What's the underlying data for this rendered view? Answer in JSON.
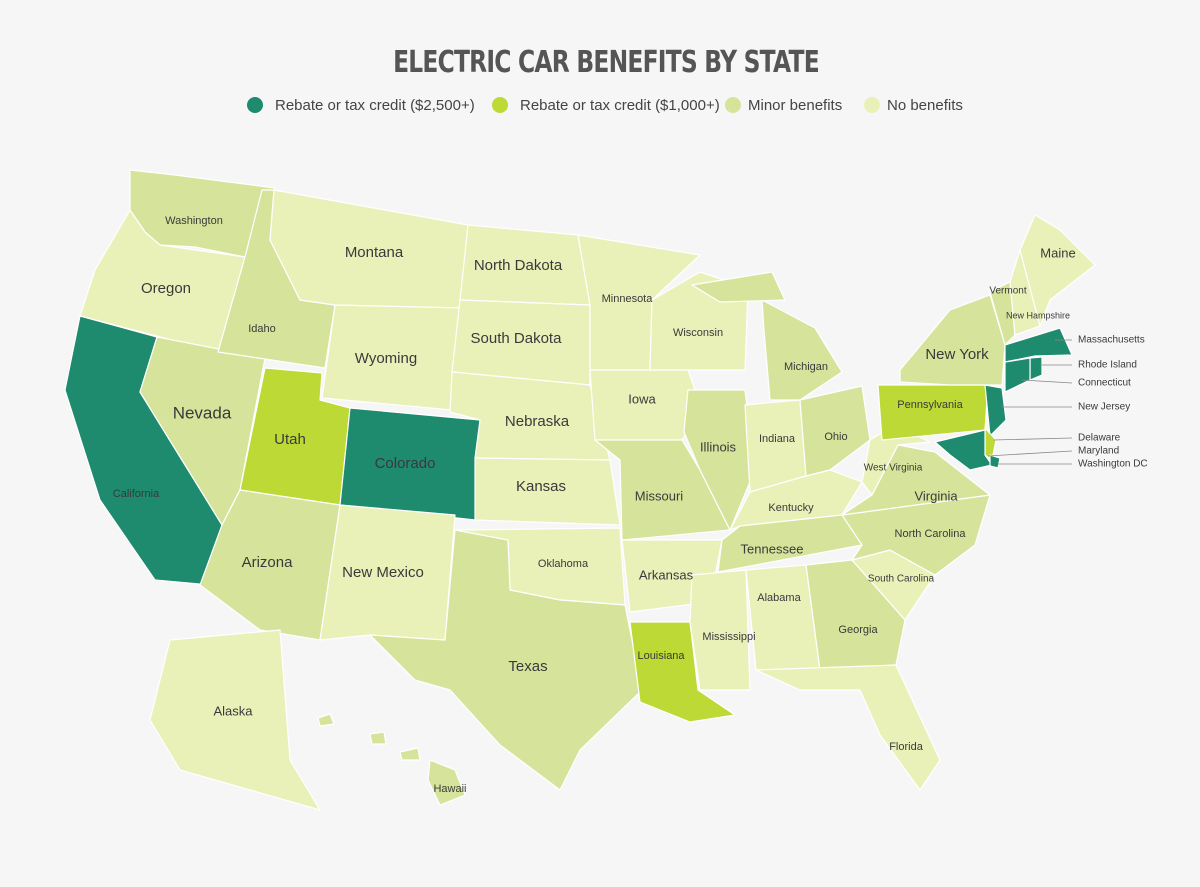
{
  "title": "ELECTRIC CAR BENEFITS BY STATE",
  "legend": [
    {
      "label": "Rebate or tax credit ($2,500+)",
      "color": "#1e8a6e"
    },
    {
      "label": "Rebate or tax credit ($1,000+)",
      "color": "#bcd935"
    },
    {
      "label": "Minor benefits",
      "color": "#d6e39b"
    },
    {
      "label": "No benefits",
      "color": "#e9f1b9"
    }
  ],
  "states": [
    {
      "name": "Washington",
      "benefit": "Minor benefits"
    },
    {
      "name": "Oregon",
      "benefit": "No benefits"
    },
    {
      "name": "California",
      "benefit": "Rebate or tax credit ($2,500+)"
    },
    {
      "name": "Nevada",
      "benefit": "Minor benefits"
    },
    {
      "name": "Idaho",
      "benefit": "Minor benefits"
    },
    {
      "name": "Montana",
      "benefit": "No benefits"
    },
    {
      "name": "Wyoming",
      "benefit": "No benefits"
    },
    {
      "name": "Utah",
      "benefit": "Rebate or tax credit ($1,000+)"
    },
    {
      "name": "Colorado",
      "benefit": "Rebate or tax credit ($2,500+)"
    },
    {
      "name": "Arizona",
      "benefit": "Minor benefits"
    },
    {
      "name": "New Mexico",
      "benefit": "No benefits"
    },
    {
      "name": "North Dakota",
      "benefit": "No benefits"
    },
    {
      "name": "South Dakota",
      "benefit": "No benefits"
    },
    {
      "name": "Nebraska",
      "benefit": "No benefits"
    },
    {
      "name": "Kansas",
      "benefit": "No benefits"
    },
    {
      "name": "Oklahoma",
      "benefit": "No benefits"
    },
    {
      "name": "Texas",
      "benefit": "Minor benefits"
    },
    {
      "name": "Minnesota",
      "benefit": "No benefits"
    },
    {
      "name": "Iowa",
      "benefit": "No benefits"
    },
    {
      "name": "Missouri",
      "benefit": "Minor benefits"
    },
    {
      "name": "Arkansas",
      "benefit": "No benefits"
    },
    {
      "name": "Louisiana",
      "benefit": "Rebate or tax credit ($1,000+)"
    },
    {
      "name": "Wisconsin",
      "benefit": "No benefits"
    },
    {
      "name": "Illinois",
      "benefit": "Minor benefits"
    },
    {
      "name": "Michigan",
      "benefit": "Minor benefits"
    },
    {
      "name": "Indiana",
      "benefit": "No benefits"
    },
    {
      "name": "Ohio",
      "benefit": "Minor benefits"
    },
    {
      "name": "Kentucky",
      "benefit": "No benefits"
    },
    {
      "name": "Tennessee",
      "benefit": "Minor benefits"
    },
    {
      "name": "Mississippi",
      "benefit": "No benefits"
    },
    {
      "name": "Alabama",
      "benefit": "No benefits"
    },
    {
      "name": "Georgia",
      "benefit": "Minor benefits"
    },
    {
      "name": "Florida",
      "benefit": "No benefits"
    },
    {
      "name": "South Carolina",
      "benefit": "No benefits"
    },
    {
      "name": "North Carolina",
      "benefit": "Minor benefits"
    },
    {
      "name": "Virginia",
      "benefit": "Minor benefits"
    },
    {
      "name": "West Virginia",
      "benefit": "No benefits"
    },
    {
      "name": "Pennsylvania",
      "benefit": "Rebate or tax credit ($1,000+)"
    },
    {
      "name": "New York",
      "benefit": "Minor benefits"
    },
    {
      "name": "Vermont",
      "benefit": "Minor benefits"
    },
    {
      "name": "New Hampshire",
      "benefit": "No benefits"
    },
    {
      "name": "Maine",
      "benefit": "No benefits"
    },
    {
      "name": "Massachusetts",
      "benefit": "Rebate or tax credit ($2,500+)"
    },
    {
      "name": "Rhode Island",
      "benefit": "Rebate or tax credit ($2,500+)"
    },
    {
      "name": "Connecticut",
      "benefit": "Rebate or tax credit ($2,500+)"
    },
    {
      "name": "New Jersey",
      "benefit": "Rebate or tax credit ($2,500+)"
    },
    {
      "name": "Delaware",
      "benefit": "Rebate or tax credit ($1,000+)"
    },
    {
      "name": "Maryland",
      "benefit": "Rebate or tax credit ($2,500+)"
    },
    {
      "name": "Washington DC",
      "benefit": "Rebate or tax credit ($2,500+)"
    },
    {
      "name": "Alaska",
      "benefit": "No benefits"
    },
    {
      "name": "Hawaii",
      "benefit": "Minor benefits"
    }
  ]
}
